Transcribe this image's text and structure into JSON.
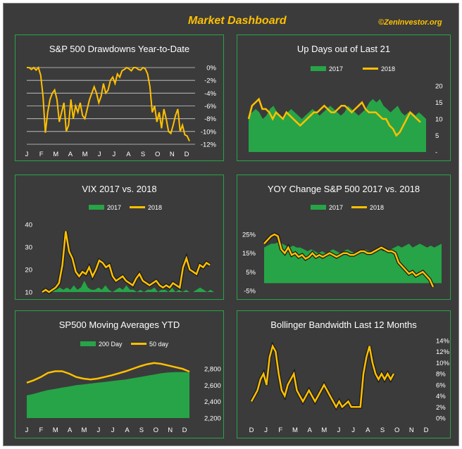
{
  "dashboard": {
    "title": "Market Dashboard",
    "credit": "©ZenInvestor.org"
  },
  "colors": {
    "background": "#3b3b3b",
    "border": "#27a447",
    "gold": "#ffc000",
    "green": "#27a447",
    "text": "#ffffff"
  },
  "chart_data": [
    {
      "type": "line",
      "title": "S&P 500 Drawdowns Year-to-Date",
      "x_ticks": [
        "J",
        "F",
        "M",
        "A",
        "M",
        "J",
        "J",
        "A",
        "S",
        "O",
        "N",
        "D"
      ],
      "y_ticks": [
        "0%",
        "-2%",
        "-4%",
        "-6%",
        "-8%",
        "-10%",
        "-12%"
      ],
      "ylim": [
        -12,
        0
      ],
      "grid": true,
      "series": [
        {
          "values": [
            0,
            0,
            -0.3,
            0,
            -0.4,
            0,
            -1.2,
            -4.5,
            -10.2,
            -7,
            -5,
            -4,
            -3.5,
            -5,
            -8.5,
            -7,
            -5.5,
            -10,
            -9,
            -5,
            -8,
            -6,
            -7,
            -5.5,
            -7.5,
            -8,
            -6.5,
            -5,
            -4,
            -3,
            -4,
            -5.5,
            -4.5,
            -2.5,
            -4,
            -3.5,
            -2,
            -1.5,
            -2.5,
            -1,
            -1.5,
            -0.5,
            -0.3,
            0,
            -0.2,
            -0.5,
            0,
            0,
            -0.3,
            -0.4,
            0,
            -0.2,
            -1,
            -3,
            -7,
            -6,
            -8.5,
            -7,
            -9.5,
            -6.5,
            -8,
            -10,
            -10.3,
            -9,
            -7.5,
            -6.5,
            -10,
            -9,
            -10.5,
            -10.7,
            -11.5
          ]
        }
      ]
    },
    {
      "type": "area",
      "title": "Up Days out of Last  21",
      "legend": [
        "2017",
        "2018"
      ],
      "y_ticks": [
        "20",
        "15",
        "10",
        "5",
        "-"
      ],
      "ylim": [
        0,
        20
      ],
      "series": [
        {
          "name": "2017",
          "values": [
            11,
            12,
            13,
            12,
            10,
            11,
            13,
            14,
            12,
            11,
            10,
            12,
            13,
            12,
            11,
            10,
            11,
            12,
            13,
            12,
            11,
            12,
            13,
            14,
            13,
            12,
            11,
            12,
            14,
            13,
            12,
            11,
            12,
            13,
            15,
            16,
            15,
            16,
            14,
            13,
            12,
            13,
            14,
            12,
            11,
            12,
            12,
            11,
            12,
            11,
            10
          ]
        },
        {
          "name": "2018",
          "values": [
            10,
            14,
            15,
            16,
            13,
            13,
            12,
            10,
            12,
            11,
            10,
            12,
            11,
            10,
            9,
            8,
            9,
            10,
            11,
            12,
            12,
            13,
            14,
            13,
            12,
            12,
            13,
            14,
            14,
            13,
            12,
            13,
            14,
            15,
            13,
            12,
            12,
            12,
            11,
            10,
            10,
            8,
            7,
            5,
            6,
            8,
            10,
            12,
            11,
            10,
            9
          ]
        }
      ]
    },
    {
      "type": "area",
      "title": "VIX 2017 vs. 2018",
      "legend": [
        "2017",
        "2018"
      ],
      "y_ticks": [
        "40",
        "30",
        "20",
        "10"
      ],
      "ylim": [
        10,
        40
      ],
      "series": [
        {
          "name": "2017",
          "values": [
            11,
            11,
            10,
            11,
            11,
            12,
            11,
            12,
            11,
            13,
            11,
            12,
            15,
            12,
            11,
            11,
            12,
            11,
            13,
            11,
            10,
            11,
            12,
            11,
            13,
            11,
            11,
            10,
            11,
            10,
            11,
            11,
            12,
            10,
            11,
            11,
            10,
            12,
            10,
            11,
            10,
            11,
            10,
            10,
            11,
            12,
            11,
            10,
            11,
            10
          ]
        },
        {
          "name": "2018",
          "values": [
            10,
            11,
            10,
            11,
            12,
            14,
            22,
            37,
            28,
            25,
            19,
            17,
            19,
            18,
            21,
            17,
            20,
            24,
            23,
            21,
            22,
            17,
            15,
            16,
            17,
            15,
            14,
            13,
            16,
            18,
            15,
            14,
            13,
            14,
            15,
            13,
            12,
            13,
            12,
            14,
            13,
            12,
            21,
            25,
            20,
            19,
            18,
            22,
            21,
            23,
            22
          ]
        }
      ]
    },
    {
      "type": "area",
      "title": "YOY Change S&P 500 2017 vs. 2018",
      "legend": [
        "2017",
        "2018"
      ],
      "y_ticks": [
        "25%",
        "15%",
        "5%",
        "-5%"
      ],
      "ylim": [
        -5,
        25
      ],
      "series": [
        {
          "name": "2017",
          "values": [
            18,
            19,
            20,
            20,
            21,
            20,
            19,
            18,
            19,
            18,
            18,
            17,
            16,
            17,
            16,
            15,
            16,
            15,
            16,
            17,
            16,
            15,
            16,
            17,
            16,
            15,
            16,
            16,
            17,
            16,
            16,
            16,
            17,
            16,
            17,
            17,
            18,
            19,
            18,
            19,
            20,
            18,
            19,
            20,
            19,
            18,
            19,
            18,
            19,
            20
          ]
        },
        {
          "name": "2018",
          "values": [
            20,
            22,
            24,
            25,
            24,
            17,
            15,
            18,
            14,
            15,
            13,
            14,
            12,
            13,
            15,
            13,
            14,
            13,
            14,
            15,
            14,
            13,
            14,
            15,
            15,
            14,
            14,
            15,
            16,
            16,
            15,
            15,
            16,
            17,
            18,
            17,
            16,
            16,
            15,
            10,
            8,
            6,
            4,
            5,
            3,
            4,
            5,
            3,
            1,
            -3
          ]
        }
      ]
    },
    {
      "type": "area",
      "title": "SP500 Moving Averages YTD",
      "legend": [
        "200 Day",
        "50 day"
      ],
      "x_ticks": [
        "J",
        "F",
        "M",
        "A",
        "M",
        "J",
        "J",
        "A",
        "S",
        "O",
        "N",
        "D"
      ],
      "y_ticks": [
        "2,800",
        "2,600",
        "2,400",
        "2,200"
      ],
      "ylim": [
        2200,
        2800
      ],
      "series": [
        {
          "name": "200 Day",
          "values": [
            2475,
            2495,
            2520,
            2540,
            2555,
            2570,
            2585,
            2600,
            2610,
            2620,
            2630,
            2640,
            2650,
            2660,
            2670,
            2685,
            2700,
            2715,
            2730,
            2745,
            2755,
            2760,
            2760,
            2755
          ]
        },
        {
          "name": "50 day",
          "values": [
            2630,
            2660,
            2700,
            2750,
            2770,
            2770,
            2740,
            2700,
            2680,
            2670,
            2680,
            2700,
            2720,
            2745,
            2770,
            2800,
            2830,
            2855,
            2870,
            2860,
            2840,
            2820,
            2800,
            2765
          ]
        }
      ]
    },
    {
      "type": "line",
      "title": "Bollinger Bandwidth Last 12 Months",
      "x_ticks": [
        "D",
        "J",
        "F",
        "M",
        "A",
        "M",
        "J",
        "J",
        "A",
        "S",
        "O",
        "N",
        "D"
      ],
      "y_ticks": [
        "14%",
        "12%",
        "10%",
        "8%",
        "6%",
        "4%",
        "2%",
        "0%"
      ],
      "ylim": [
        0,
        14
      ],
      "series": [
        {
          "values": [
            3,
            4,
            5,
            7,
            8,
            6,
            11,
            13,
            12,
            8,
            5,
            4,
            6,
            7,
            8,
            5,
            4,
            3,
            4,
            5,
            4,
            3,
            4,
            5,
            6,
            5,
            4,
            3,
            2,
            3,
            2,
            2.5,
            3,
            2,
            2,
            2,
            2,
            8,
            11,
            13,
            10,
            8,
            7,
            8,
            7,
            8,
            7,
            8
          ]
        }
      ]
    }
  ]
}
